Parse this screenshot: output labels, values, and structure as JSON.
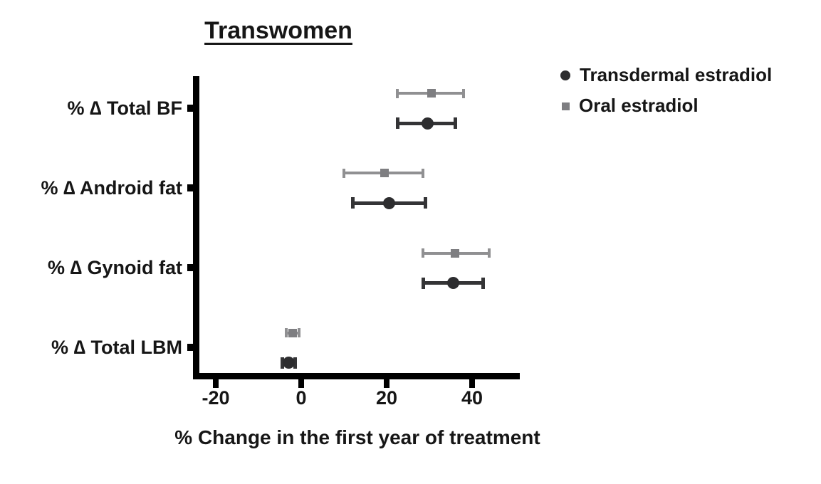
{
  "chart_data": {
    "type": "scatter",
    "variant": "horizontal-dot-plot-with-error-bars",
    "title": "Transwomen",
    "xlabel": "% Change in the first year of treatment",
    "categories": [
      "% ∆ Total BF",
      "% ∆ Android fat",
      "% ∆ Gynoid fat",
      "% ∆ Total LBM"
    ],
    "xticks": [
      -20,
      0,
      20,
      40
    ],
    "xlim": [
      -25,
      51
    ],
    "grid": false,
    "legend_position": "top-right",
    "series": [
      {
        "name": "Transdermal estradiol",
        "marker": "circle",
        "marker_color": "#2d2d2f",
        "line_color": "#343436",
        "values": [
          29.5,
          20.5,
          35.5,
          -3
        ],
        "ci_low": [
          22.5,
          12,
          28.5,
          -4.5
        ],
        "ci_high": [
          36,
          29,
          42.5,
          -1.5
        ]
      },
      {
        "name": "Oral estradiol",
        "marker": "square",
        "marker_color": "#7e7e81",
        "line_color": "#909092",
        "values": [
          30.5,
          19.5,
          36,
          -2
        ],
        "ci_low": [
          22.5,
          10,
          28.5,
          -3.5
        ],
        "ci_high": [
          38,
          28.5,
          44,
          -0.5
        ]
      }
    ]
  }
}
